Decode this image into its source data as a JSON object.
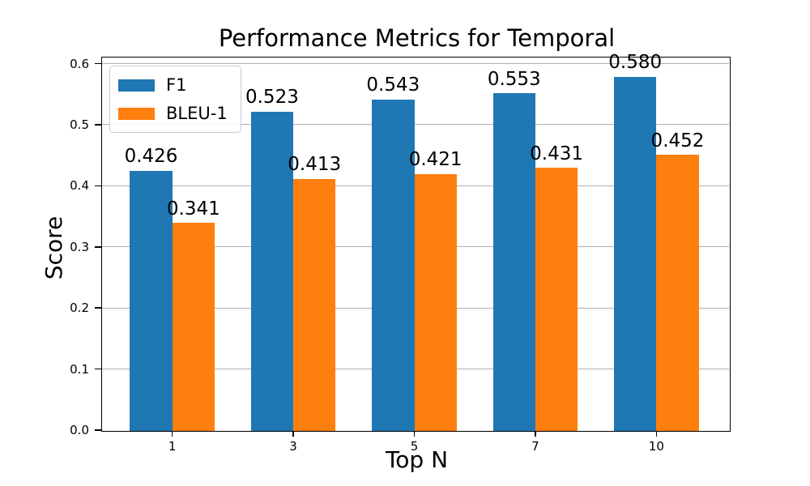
{
  "chart_data": {
    "type": "bar",
    "title": "Performance Metrics for Temporal",
    "xlabel": "Top N",
    "ylabel": "Score",
    "categories": [
      "1",
      "3",
      "5",
      "7",
      "10"
    ],
    "series": [
      {
        "name": "F1",
        "color": "#1f77b4",
        "values": [
          0.426,
          0.523,
          0.543,
          0.553,
          0.58
        ],
        "labels": [
          "0.426",
          "0.523",
          "0.543",
          "0.553",
          "0.580"
        ]
      },
      {
        "name": "BLEU-1",
        "color": "#ff7f0e",
        "values": [
          0.341,
          0.413,
          0.421,
          0.431,
          0.452
        ],
        "labels": [
          "0.341",
          "0.413",
          "0.421",
          "0.431",
          "0.452"
        ]
      }
    ],
    "yticks": [
      0.0,
      0.1,
      0.2,
      0.3,
      0.4,
      0.5,
      0.6
    ],
    "ytick_labels": [
      "0.0",
      "0.1",
      "0.2",
      "0.3",
      "0.4",
      "0.5",
      "0.6"
    ],
    "ylim": [
      0,
      0.61
    ],
    "bar_width_fraction": 0.35,
    "grid": "horizontal",
    "grid_color": "#b0b0b0",
    "spine_color": "#000000",
    "text_color": "#000000",
    "background": "#ffffff",
    "legend_position": "upper-left"
  }
}
